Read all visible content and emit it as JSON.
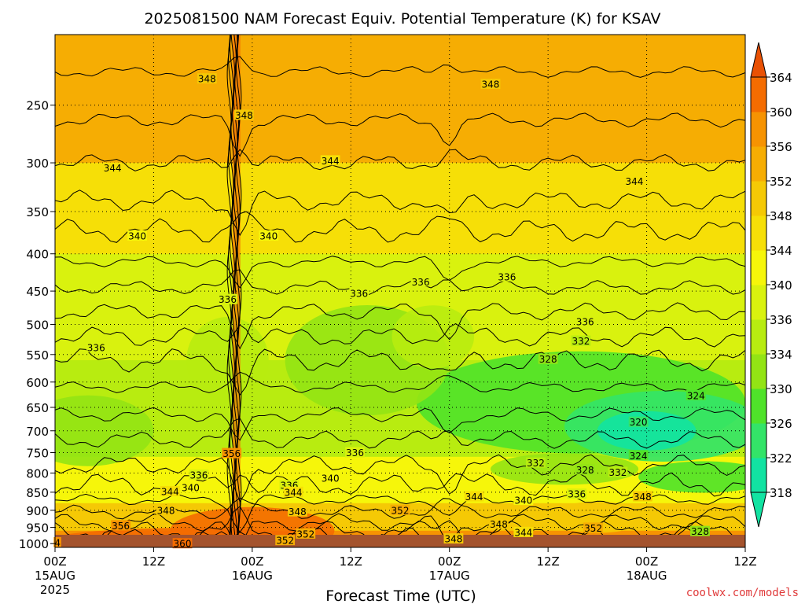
{
  "chart_data": {
    "type": "heatmap",
    "title": "2025081500 NAM Forecast Equiv. Potential Temperature (K) for KSAV",
    "xlabel": "Forecast Time (UTC)",
    "credit": "coolwx.com/models",
    "x_ticks": [
      {
        "t": 0,
        "label": "00Z",
        "sub": "15AUG",
        "sub2": "2025"
      },
      {
        "t": 12,
        "label": "12Z",
        "sub": "",
        "sub2": ""
      },
      {
        "t": 24,
        "label": "00Z",
        "sub": "16AUG",
        "sub2": ""
      },
      {
        "t": 36,
        "label": "12Z",
        "sub": "",
        "sub2": ""
      },
      {
        "t": 48,
        "label": "00Z",
        "sub": "17AUG",
        "sub2": ""
      },
      {
        "t": 60,
        "label": "12Z",
        "sub": "",
        "sub2": ""
      },
      {
        "t": 72,
        "label": "00Z",
        "sub": "18AUG",
        "sub2": ""
      },
      {
        "t": 84,
        "label": "12Z",
        "sub": "",
        "sub2": ""
      }
    ],
    "x_range_hours": [
      0,
      84
    ],
    "y_range_hpa": [
      1012,
      200
    ],
    "y_scale": "log",
    "y_ticks": [
      250,
      300,
      350,
      400,
      450,
      500,
      550,
      600,
      650,
      700,
      750,
      800,
      850,
      900,
      950,
      1000
    ],
    "colorbar": {
      "levels": [
        318,
        322,
        326,
        330,
        334,
        336,
        340,
        344,
        348,
        352,
        356,
        360,
        364
      ],
      "colors": [
        "#12e3a2",
        "#33e468",
        "#4fe32a",
        "#93e414",
        "#b8ec10",
        "#d9f20e",
        "#f6f60a",
        "#f6df07",
        "#f5c905",
        "#f6ad03",
        "#f69302",
        "#f46c01",
        "#e95104"
      ]
    },
    "contour_labels": [
      {
        "t": 18.5,
        "p": 230,
        "v": "348"
      },
      {
        "t": 23.0,
        "p": 258,
        "v": "348"
      },
      {
        "t": 53.0,
        "p": 234,
        "v": "348"
      },
      {
        "t": 7.0,
        "p": 305,
        "v": "344"
      },
      {
        "t": 33.5,
        "p": 298,
        "v": "344"
      },
      {
        "t": 70.5,
        "p": 318,
        "v": "344"
      },
      {
        "t": 10.0,
        "p": 378,
        "v": "340"
      },
      {
        "t": 26.0,
        "p": 378,
        "v": "340"
      },
      {
        "t": 21.0,
        "p": 462,
        "v": "336"
      },
      {
        "t": 37.0,
        "p": 453,
        "v": "336"
      },
      {
        "t": 44.5,
        "p": 437,
        "v": "336"
      },
      {
        "t": 55.0,
        "p": 430,
        "v": "336"
      },
      {
        "t": 64.5,
        "p": 496,
        "v": "336"
      },
      {
        "t": 5.0,
        "p": 538,
        "v": "336"
      },
      {
        "t": 64.0,
        "p": 527,
        "v": "332"
      },
      {
        "t": 60.0,
        "p": 558,
        "v": "328"
      },
      {
        "t": 78.0,
        "p": 626,
        "v": "324"
      },
      {
        "t": 71.0,
        "p": 681,
        "v": "320"
      },
      {
        "t": 21.5,
        "p": 752,
        "v": "356"
      },
      {
        "t": 36.5,
        "p": 750,
        "v": "336"
      },
      {
        "t": 17.5,
        "p": 805,
        "v": "336"
      },
      {
        "t": 33.5,
        "p": 813,
        "v": "340"
      },
      {
        "t": 16.5,
        "p": 838,
        "v": "340"
      },
      {
        "t": 14.0,
        "p": 848,
        "v": "344"
      },
      {
        "t": 28.5,
        "p": 832,
        "v": "336"
      },
      {
        "t": 29.0,
        "p": 850,
        "v": "344"
      },
      {
        "t": 13.5,
        "p": 900,
        "v": "348"
      },
      {
        "t": 29.5,
        "p": 904,
        "v": "348"
      },
      {
        "t": 8.0,
        "p": 945,
        "v": "356"
      },
      {
        "t": 15.5,
        "p": 1000,
        "v": "360"
      },
      {
        "t": 28.0,
        "p": 990,
        "v": "352"
      },
      {
        "t": 30.5,
        "p": 970,
        "v": "352"
      },
      {
        "t": 42.0,
        "p": 900,
        "v": "352"
      },
      {
        "t": 51.0,
        "p": 862,
        "v": "344"
      },
      {
        "t": 57.0,
        "p": 872,
        "v": "340"
      },
      {
        "t": 63.5,
        "p": 855,
        "v": "336"
      },
      {
        "t": 54.0,
        "p": 940,
        "v": "348"
      },
      {
        "t": 57.0,
        "p": 965,
        "v": "344"
      },
      {
        "t": 48.5,
        "p": 985,
        "v": "348"
      },
      {
        "t": 65.5,
        "p": 952,
        "v": "352"
      },
      {
        "t": 58.5,
        "p": 775,
        "v": "332"
      },
      {
        "t": 64.5,
        "p": 792,
        "v": "328"
      },
      {
        "t": 68.5,
        "p": 798,
        "v": "332"
      },
      {
        "t": 71.0,
        "p": 757,
        "v": "324"
      },
      {
        "t": 71.5,
        "p": 862,
        "v": "348"
      },
      {
        "t": 78.5,
        "p": 962,
        "v": "328"
      },
      {
        "t": 0.3,
        "p": 997,
        "v": "4"
      }
    ]
  }
}
